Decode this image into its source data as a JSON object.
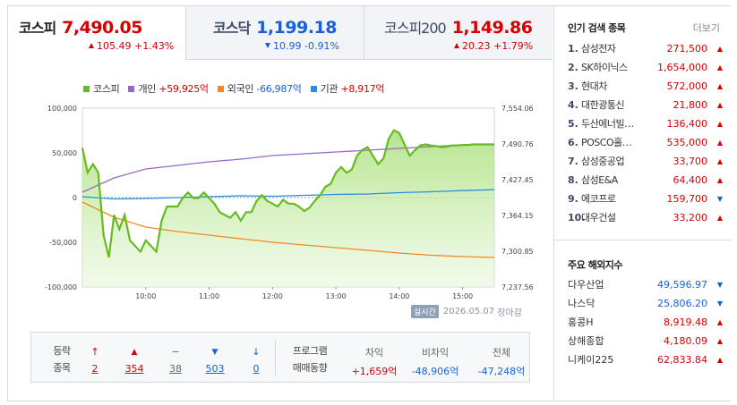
{
  "tabs": [
    {
      "name": "코스피",
      "value": "7,490.05",
      "change": "105.49",
      "pct": "+1.43%",
      "dir": "up"
    },
    {
      "name": "코스닥",
      "value": "1,199.18",
      "change": "10.99",
      "pct": "-0.91%",
      "dir": "down"
    },
    {
      "name": "코스피200",
      "value": "1,149.86",
      "change": "20.23",
      "pct": "+1.79%",
      "dir": "up"
    }
  ],
  "legend": [
    {
      "label": "코스피",
      "value": "",
      "color": "#66bb22"
    },
    {
      "label": "개인",
      "value": "+59,925억",
      "value_dir": "up",
      "color": "#9966cc"
    },
    {
      "label": "외국인",
      "value": "-66,987억",
      "value_dir": "down",
      "color": "#f28a1e"
    },
    {
      "label": "기관",
      "value": "+8,917억",
      "value_dir": "up",
      "color": "#2b8de0"
    }
  ],
  "chart_data": {
    "type": "line",
    "title": "",
    "x_ticks": [
      "10:00",
      "11:00",
      "12:00",
      "13:00",
      "14:00",
      "15:00"
    ],
    "left_axis_ticks": [
      "100,000",
      "50,000",
      "0",
      "-50,000",
      "-100,000"
    ],
    "left_ylim": [
      -100000,
      100000
    ],
    "right_axis_ticks": [
      "7,554.06",
      "7,490.76",
      "7,427.45",
      "7,364.15",
      "7,300.85",
      "7,237.56"
    ],
    "right_ylim": [
      7237.56,
      7554.06
    ],
    "x_range_minutes": [
      540,
      930
    ],
    "series": [
      {
        "name": "코스피",
        "axis": "right",
        "x": [
          540,
          545,
          550,
          555,
          560,
          565,
          570,
          575,
          580,
          585,
          590,
          595,
          600,
          605,
          610,
          615,
          620,
          625,
          630,
          635,
          640,
          645,
          650,
          655,
          660,
          665,
          670,
          675,
          680,
          685,
          690,
          695,
          700,
          705,
          710,
          715,
          720,
          725,
          730,
          735,
          740,
          745,
          750,
          755,
          760,
          765,
          770,
          775,
          780,
          785,
          790,
          795,
          800,
          805,
          810,
          815,
          820,
          825,
          830,
          835,
          840,
          845,
          850,
          855,
          860,
          865,
          870,
          875,
          880,
          885,
          890,
          895,
          900,
          905,
          910,
          915,
          920,
          925,
          930
        ],
        "values": [
          7484,
          7440,
          7455,
          7440,
          7330,
          7290,
          7365,
          7340,
          7365,
          7320,
          7310,
          7300,
          7320,
          7310,
          7300,
          7355,
          7380,
          7380,
          7380,
          7395,
          7405,
          7395,
          7395,
          7405,
          7395,
          7385,
          7370,
          7365,
          7360,
          7370,
          7355,
          7370,
          7370,
          7390,
          7400,
          7390,
          7385,
          7380,
          7392,
          7385,
          7385,
          7380,
          7372,
          7378,
          7390,
          7400,
          7415,
          7420,
          7440,
          7450,
          7440,
          7445,
          7470,
          7480,
          7485,
          7470,
          7455,
          7465,
          7500,
          7515,
          7510,
          7490,
          7470,
          7480,
          7488,
          7490,
          7488,
          7487,
          7485,
          7486,
          7488,
          7488,
          7489,
          7489,
          7490,
          7490,
          7490,
          7490,
          7490
        ]
      },
      {
        "name": "개인",
        "axis": "left",
        "x": [
          540,
          570,
          600,
          630,
          660,
          690,
          720,
          750,
          780,
          810,
          840,
          870,
          900,
          930
        ],
        "values": [
          6000,
          22000,
          32000,
          36000,
          40000,
          43000,
          47000,
          49000,
          51000,
          53000,
          55000,
          57000,
          59000,
          59925
        ]
      },
      {
        "name": "외국인",
        "axis": "left",
        "x": [
          540,
          570,
          600,
          630,
          660,
          690,
          720,
          750,
          780,
          810,
          840,
          870,
          900,
          930
        ],
        "values": [
          -5000,
          -22000,
          -33000,
          -38000,
          -42000,
          -46000,
          -50000,
          -53000,
          -56000,
          -59000,
          -62000,
          -64500,
          -66000,
          -66987
        ]
      },
      {
        "name": "기관",
        "axis": "left",
        "x": [
          540,
          570,
          600,
          630,
          660,
          690,
          720,
          750,
          780,
          810,
          840,
          870,
          900,
          930
        ],
        "values": [
          1000,
          -1500,
          -1000,
          0,
          1000,
          2000,
          1500,
          2500,
          3500,
          4000,
          5500,
          6500,
          7800,
          8917
        ]
      }
    ]
  },
  "chart_footer": {
    "badge": "실시간",
    "date": "2026.05.07",
    "status": "장마감"
  },
  "breadth": {
    "label_line1": "등락",
    "label_line2": "종목",
    "items": [
      {
        "icon": "↑",
        "count": "2",
        "dir": "up"
      },
      {
        "icon": "▲",
        "count": "354",
        "dir": "up"
      },
      {
        "icon": "−",
        "count": "38",
        "dir": "flat"
      },
      {
        "icon": "▼",
        "count": "503",
        "dir": "down"
      },
      {
        "icon": "↓",
        "count": "0",
        "dir": "down"
      }
    ]
  },
  "program": {
    "label_line1": "프로그램",
    "label_line2": "매매동향",
    "cols": [
      {
        "header": "차익",
        "value": "+1,659억",
        "dir": "up"
      },
      {
        "header": "비차익",
        "value": "-48,906억",
        "dir": "down"
      },
      {
        "header": "전체",
        "value": "-47,248억",
        "dir": "down"
      }
    ]
  },
  "popular": {
    "title": "인기 검색 종목",
    "more": "더보기",
    "items": [
      {
        "no": "1.",
        "name": "삼성전자",
        "price": "271,500",
        "dir": "up"
      },
      {
        "no": "2.",
        "name": "SK하이닉스",
        "price": "1,654,000",
        "dir": "up"
      },
      {
        "no": "3.",
        "name": "현대차",
        "price": "572,000",
        "dir": "up"
      },
      {
        "no": "4.",
        "name": "대한광통신",
        "price": "21,800",
        "dir": "up"
      },
      {
        "no": "5.",
        "name": "두산에너빌…",
        "price": "136,400",
        "dir": "up"
      },
      {
        "no": "6.",
        "name": "POSCO홀…",
        "price": "535,000",
        "dir": "up"
      },
      {
        "no": "7.",
        "name": "삼성중공업",
        "price": "33,700",
        "dir": "up"
      },
      {
        "no": "8.",
        "name": "삼성E&A",
        "price": "64,400",
        "dir": "up"
      },
      {
        "no": "9.",
        "name": "에코프로",
        "price": "159,700",
        "dir": "down"
      },
      {
        "no": "10.",
        "name": "대우건설",
        "price": "33,200",
        "dir": "up"
      }
    ]
  },
  "world": {
    "title": "주요 해외지수",
    "items": [
      {
        "name": "다우산업",
        "value": "49,596.97",
        "dir": "down"
      },
      {
        "name": "나스닥",
        "value": "25,806.20",
        "dir": "down"
      },
      {
        "name": "홍콩H",
        "value": "8,919.48",
        "dir": "up"
      },
      {
        "name": "상해종합",
        "value": "4,180.09",
        "dir": "up"
      },
      {
        "name": "니케이225",
        "value": "62,833.84",
        "dir": "up"
      }
    ]
  }
}
